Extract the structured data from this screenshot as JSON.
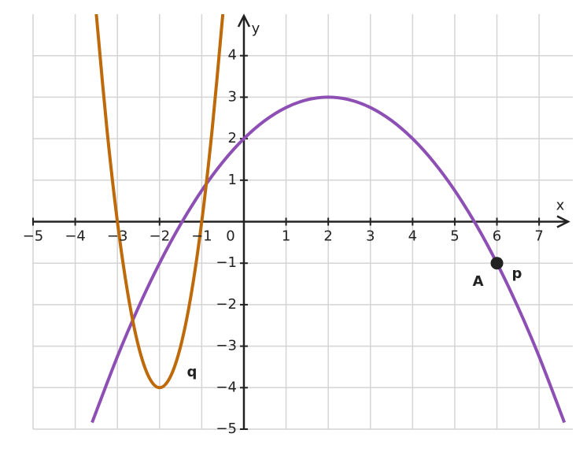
{
  "chart_data": {
    "type": "line",
    "x_label": "x",
    "y_label": "y",
    "xlim": [
      -5,
      7.8
    ],
    "ylim": [
      -5,
      5
    ],
    "xticks": [
      {
        "value": -5,
        "label": "−5"
      },
      {
        "value": -4,
        "label": "−4"
      },
      {
        "value": -3,
        "label": "−3"
      },
      {
        "value": -2,
        "label": "−2"
      },
      {
        "value": -1,
        "label": "−1"
      },
      1,
      2,
      3,
      4,
      5,
      6,
      7
    ],
    "yticks": [
      {
        "value": -5,
        "label": "−5"
      },
      {
        "value": -4,
        "label": "−4"
      },
      {
        "value": -3,
        "label": "−3"
      },
      {
        "value": -2,
        "label": "−2"
      },
      {
        "value": -1,
        "label": "−1"
      },
      1,
      2,
      3,
      4
    ],
    "origin_label": "0",
    "grid": true,
    "series": [
      {
        "name": "p",
        "color": "#8e4fb5",
        "x": [
          -3.6,
          -3,
          -2.5,
          -2,
          -1.5,
          -1,
          -0.5,
          0,
          0.5,
          1,
          1.5,
          2,
          2.5,
          3,
          3.5,
          4,
          4.5,
          5,
          5.5,
          6,
          6.5,
          7,
          7.6
        ],
        "values": [
          -4.84,
          -3.25,
          -2.0625,
          -1,
          -0.0625,
          0.75,
          1.4375,
          2,
          2.4375,
          2.75,
          2.9375,
          3,
          2.9375,
          2.75,
          2.4375,
          2,
          1.4375,
          0.75,
          -0.0625,
          -1,
          -2.0625,
          -3.25,
          -4.84
        ]
      },
      {
        "name": "q",
        "color": "#bf6a0a",
        "x": [
          -3.5,
          -3.25,
          -3,
          -2.75,
          -2.5,
          -2.25,
          -2,
          -1.75,
          -1.5,
          -1.25,
          -1,
          -0.75,
          -0.5
        ],
        "values": [
          5,
          2.25,
          0,
          -1.75,
          -3,
          -3.75,
          -4,
          -3.75,
          -3,
          -1.75,
          0,
          2.25,
          5
        ]
      }
    ],
    "points": [
      {
        "label": "A",
        "x": 6,
        "y": -1,
        "color": "#222222"
      }
    ]
  }
}
